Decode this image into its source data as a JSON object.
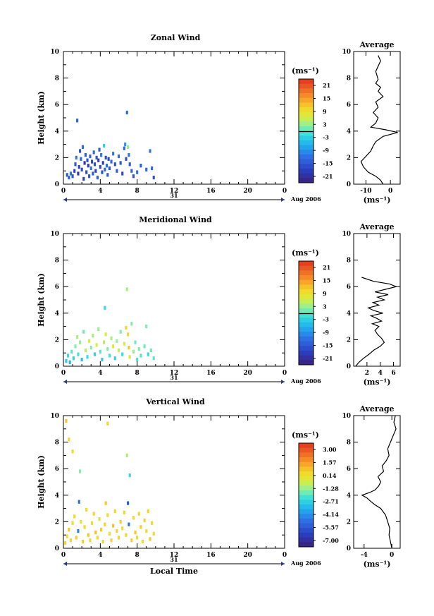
{
  "chart_data": [
    {
      "type": "heatmap",
      "title": "Zonal Wind",
      "ylabel": "Height (km)",
      "xlim": [
        0,
        24
      ],
      "ylim": [
        0,
        10
      ],
      "x_ticks": [
        "0",
        "4",
        "8",
        "12",
        "16",
        "20",
        "0"
      ],
      "y_ticks": [
        "0",
        "2",
        "4",
        "6",
        "8",
        "10"
      ],
      "date_marker": "31",
      "date_label": "Aug 2006",
      "colorbar_unit": "(ms⁻¹)",
      "colorbar_ticks": [
        "21",
        "15",
        "9",
        "3",
        "-3",
        "-9",
        "-15",
        "-21"
      ],
      "colorbar_range": [
        -25,
        25
      ],
      "cells": [
        [
          0.4,
          0.7,
          -15
        ],
        [
          0.6,
          0.5,
          -14
        ],
        [
          0.8,
          0.8,
          -12
        ],
        [
          1.0,
          0.6,
          -16
        ],
        [
          1.2,
          1.0,
          -18
        ],
        [
          1.3,
          1.5,
          -16
        ],
        [
          1.4,
          2.0,
          -12
        ],
        [
          1.5,
          4.8,
          -14
        ],
        [
          1.6,
          0.8,
          -20
        ],
        [
          1.7,
          1.3,
          -18
        ],
        [
          1.8,
          2.5,
          -16
        ],
        [
          1.9,
          1.9,
          -14
        ],
        [
          2.0,
          1.1,
          -17
        ],
        [
          2.1,
          2.8,
          -13
        ],
        [
          2.2,
          0.4,
          -19
        ],
        [
          2.3,
          1.6,
          -21
        ],
        [
          2.4,
          2.2,
          -15
        ],
        [
          2.5,
          0.9,
          -18
        ],
        [
          2.6,
          1.8,
          -17
        ],
        [
          2.7,
          1.4,
          -20
        ],
        [
          2.8,
          0.6,
          -16
        ],
        [
          2.9,
          2.1,
          -14
        ],
        [
          3.0,
          1.2,
          -12
        ],
        [
          3.1,
          1.7,
          -18
        ],
        [
          3.2,
          0.8,
          -15
        ],
        [
          3.3,
          2.4,
          -13
        ],
        [
          3.4,
          1.5,
          -17
        ],
        [
          3.5,
          1.0,
          -19
        ],
        [
          3.6,
          2.0,
          -16
        ],
        [
          3.7,
          0.5,
          -14
        ],
        [
          3.8,
          1.8,
          -20
        ],
        [
          3.9,
          2.6,
          -15
        ],
        [
          4.0,
          1.3,
          -18
        ],
        [
          4.1,
          2.2,
          -12
        ],
        [
          4.2,
          0.9,
          -16
        ],
        [
          4.3,
          1.6,
          -19
        ],
        [
          4.4,
          2.9,
          -3
        ],
        [
          4.5,
          1.1,
          -14
        ],
        [
          4.6,
          2.0,
          -17
        ],
        [
          4.7,
          1.4,
          -13
        ],
        [
          4.8,
          0.7,
          -15
        ],
        [
          4.9,
          1.9,
          -18
        ],
        [
          5.0,
          1.2,
          -16
        ],
        [
          5.2,
          1.7,
          -14
        ],
        [
          5.4,
          2.3,
          -12
        ],
        [
          5.6,
          1.5,
          -17
        ],
        [
          5.8,
          1.0,
          -15
        ],
        [
          6.0,
          2.1,
          -13
        ],
        [
          6.2,
          1.6,
          -16
        ],
        [
          6.4,
          0.8,
          -18
        ],
        [
          6.6,
          2.7,
          -14
        ],
        [
          6.7,
          3.0,
          -9
        ],
        [
          6.8,
          1.9,
          -17
        ],
        [
          6.9,
          5.4,
          -13
        ],
        [
          7.0,
          2.8,
          3
        ],
        [
          7.1,
          2.2,
          -12
        ],
        [
          7.2,
          1.5,
          -15
        ],
        [
          7.4,
          1.0,
          -14
        ],
        [
          7.6,
          0.6,
          -16
        ],
        [
          8.0,
          0.9,
          -13
        ],
        [
          8.4,
          1.4,
          -15
        ],
        [
          9.0,
          1.1,
          -14
        ],
        [
          9.4,
          2.5,
          -12
        ],
        [
          9.6,
          1.2,
          -13
        ],
        [
          9.8,
          0.5,
          -16
        ]
      ],
      "avg_profile": {
        "title": "Average",
        "xlabel": "(ms⁻¹)",
        "x_ticks": [
          "-10",
          "0"
        ],
        "xlim": [
          -15,
          4
        ],
        "points": [
          [
            -3.0,
            0.0
          ],
          [
            -4.0,
            0.3
          ],
          [
            -6.0,
            0.6
          ],
          [
            -9.0,
            0.9
          ],
          [
            -11.0,
            1.3
          ],
          [
            -12.0,
            1.7
          ],
          [
            -10.0,
            2.1
          ],
          [
            -8.0,
            2.5
          ],
          [
            -7.0,
            2.9
          ],
          [
            -6.0,
            3.2
          ],
          [
            -3.0,
            3.6
          ],
          [
            3.0,
            3.9
          ],
          [
            -2.0,
            4.1
          ],
          [
            -8.0,
            4.3
          ],
          [
            -6.0,
            4.6
          ],
          [
            -5.0,
            5.0
          ],
          [
            -7.0,
            5.4
          ],
          [
            -5.0,
            5.8
          ],
          [
            -6.0,
            6.2
          ],
          [
            -3.0,
            6.6
          ],
          [
            -5.0,
            7.0
          ],
          [
            -4.0,
            7.3
          ],
          [
            -6.0,
            7.6
          ],
          [
            -5.0,
            7.9
          ],
          [
            -6.0,
            8.5
          ],
          [
            -4.0,
            9.3
          ],
          [
            -5.0,
            9.7
          ]
        ]
      }
    },
    {
      "type": "heatmap",
      "title": "Meridional Wind",
      "ylabel": "Height (km)",
      "xlim": [
        0,
        24
      ],
      "ylim": [
        0,
        10
      ],
      "x_ticks": [
        "0",
        "4",
        "8",
        "12",
        "16",
        "20",
        "0"
      ],
      "y_ticks": [
        "0",
        "2",
        "4",
        "6",
        "8",
        "10"
      ],
      "date_marker": "31",
      "date_label": "Aug 2006",
      "colorbar_unit": "(ms⁻¹)",
      "colorbar_ticks": [
        "21",
        "15",
        "9",
        "3",
        "-3",
        "-9",
        "-15",
        "-21"
      ],
      "colorbar_range": [
        -25,
        25
      ],
      "cells": [
        [
          0.3,
          0.4,
          -4
        ],
        [
          0.5,
          0.8,
          -2
        ],
        [
          0.7,
          0.3,
          -6
        ],
        [
          0.9,
          1.1,
          0
        ],
        [
          1.1,
          0.6,
          -3
        ],
        [
          1.3,
          1.5,
          2
        ],
        [
          1.5,
          2.2,
          4
        ],
        [
          1.6,
          0.9,
          -1
        ],
        [
          1.8,
          1.8,
          3
        ],
        [
          2.0,
          0.5,
          -5
        ],
        [
          2.2,
          2.6,
          1
        ],
        [
          2.4,
          1.2,
          5
        ],
        [
          2.6,
          0.7,
          -2
        ],
        [
          2.8,
          1.9,
          6
        ],
        [
          3.0,
          1.4,
          2
        ],
        [
          3.2,
          2.3,
          4
        ],
        [
          3.4,
          0.9,
          -3
        ],
        [
          3.6,
          1.6,
          7
        ],
        [
          3.8,
          2.8,
          3
        ],
        [
          4.0,
          1.1,
          0
        ],
        [
          4.2,
          0.5,
          -4
        ],
        [
          4.4,
          1.8,
          5
        ],
        [
          4.5,
          4.4,
          -2
        ],
        [
          4.6,
          2.4,
          6
        ],
        [
          4.8,
          1.3,
          2
        ],
        [
          5.0,
          0.8,
          -1
        ],
        [
          5.2,
          2.1,
          4
        ],
        [
          5.4,
          1.5,
          8
        ],
        [
          5.6,
          0.6,
          -3
        ],
        [
          5.8,
          1.9,
          3
        ],
        [
          6.0,
          1.2,
          5
        ],
        [
          6.2,
          2.6,
          2
        ],
        [
          6.4,
          0.9,
          -2
        ],
        [
          6.6,
          1.7,
          7
        ],
        [
          6.8,
          2.9,
          11
        ],
        [
          6.9,
          5.8,
          4
        ],
        [
          7.0,
          2.4,
          10
        ],
        [
          7.1,
          1.4,
          12
        ],
        [
          7.2,
          0.7,
          6
        ],
        [
          7.4,
          3.2,
          2
        ],
        [
          7.6,
          1.1,
          3
        ],
        [
          7.8,
          1.8,
          1
        ],
        [
          8.0,
          0.5,
          -1
        ],
        [
          8.2,
          1.3,
          2
        ],
        [
          8.4,
          0.8,
          0
        ],
        [
          8.8,
          1.5,
          1
        ],
        [
          9.0,
          3.0,
          2
        ],
        [
          9.2,
          0.9,
          -2
        ],
        [
          9.5,
          1.2,
          1
        ],
        [
          9.8,
          0.6,
          0
        ]
      ],
      "avg_profile": {
        "title": "Average",
        "xlabel": "(ms⁻¹)",
        "x_ticks": [
          "2",
          "4",
          "6"
        ],
        "xlim": [
          0,
          7
        ],
        "points": [
          [
            0.3,
            0.0
          ],
          [
            0.8,
            0.3
          ],
          [
            1.5,
            0.6
          ],
          [
            2.3,
            0.9
          ],
          [
            3.0,
            1.2
          ],
          [
            4.0,
            1.5
          ],
          [
            4.6,
            1.8
          ],
          [
            4.2,
            2.1
          ],
          [
            3.6,
            2.4
          ],
          [
            3.2,
            2.7
          ],
          [
            3.8,
            3.0
          ],
          [
            2.8,
            3.2
          ],
          [
            4.2,
            3.4
          ],
          [
            3.5,
            3.6
          ],
          [
            2.6,
            3.8
          ],
          [
            4.4,
            4.0
          ],
          [
            3.0,
            4.2
          ],
          [
            2.2,
            4.4
          ],
          [
            3.8,
            4.6
          ],
          [
            2.9,
            4.8
          ],
          [
            4.6,
            5.0
          ],
          [
            3.6,
            5.2
          ],
          [
            5.2,
            5.4
          ],
          [
            3.2,
            5.6
          ],
          [
            4.8,
            5.8
          ],
          [
            6.4,
            6.0
          ],
          [
            5.4,
            6.2
          ],
          [
            3.0,
            6.4
          ],
          [
            1.2,
            6.7
          ]
        ]
      }
    },
    {
      "type": "heatmap",
      "title": "Vertical Wind",
      "ylabel": "Height (km)",
      "xlabel": "Local Time",
      "xlim": [
        0,
        24
      ],
      "ylim": [
        0,
        10
      ],
      "x_ticks": [
        "0",
        "4",
        "8",
        "12",
        "16",
        "20",
        "0"
      ],
      "y_ticks": [
        "0",
        "2",
        "4",
        "6",
        "8",
        "10"
      ],
      "date_marker": "31",
      "date_label": "Aug 2006",
      "colorbar_unit": "(ms⁻¹)",
      "colorbar_ticks": [
        "3.00",
        "1.57",
        "0.14",
        "-1.28",
        "-2.71",
        "-4.14",
        "-5.57",
        "-7.00"
      ],
      "colorbar_range": [
        -7.8,
        3.8
      ],
      "cells": [
        [
          0.2,
          0.4,
          0.6
        ],
        [
          0.4,
          0.9,
          0.3
        ],
        [
          0.6,
          1.4,
          0.8
        ],
        [
          0.8,
          0.6,
          0.4
        ],
        [
          1.0,
          1.9,
          0.2
        ],
        [
          1.2,
          2.4,
          0.5
        ],
        [
          1.4,
          0.8,
          0.7
        ],
        [
          1.6,
          1.3,
          -4.5
        ],
        [
          1.7,
          3.5,
          -5.0
        ],
        [
          1.8,
          5.8,
          -1.5
        ],
        [
          1.9,
          2.0,
          0.1
        ],
        [
          2.1,
          0.5,
          0.6
        ],
        [
          2.3,
          1.6,
          0.4
        ],
        [
          2.5,
          2.9,
          0.3
        ],
        [
          2.7,
          1.0,
          0.8
        ],
        [
          2.9,
          0.6,
          0.5
        ],
        [
          3.1,
          1.9,
          0.2
        ],
        [
          3.3,
          2.6,
          0.6
        ],
        [
          3.5,
          1.2,
          0.9
        ],
        [
          3.7,
          0.8,
          0.4
        ],
        [
          3.9,
          2.2,
          0.1
        ],
        [
          4.1,
          1.4,
          0.7
        ],
        [
          4.3,
          0.5,
          0.3
        ],
        [
          4.5,
          1.8,
          0.6
        ],
        [
          4.6,
          3.4,
          0.8
        ],
        [
          4.8,
          2.5,
          0.4
        ],
        [
          5.0,
          1.1,
          0.2
        ],
        [
          5.2,
          0.6,
          0.5
        ],
        [
          5.4,
          1.7,
          0.9
        ],
        [
          5.6,
          2.8,
          0.3
        ],
        [
          5.8,
          1.3,
          0.6
        ],
        [
          6.0,
          0.8,
          0.4
        ],
        [
          6.2,
          2.0,
          0.7
        ],
        [
          6.4,
          1.5,
          0.2
        ],
        [
          6.6,
          2.7,
          0.5
        ],
        [
          6.8,
          1.0,
          0.3
        ],
        [
          6.9,
          7.0,
          -1.0
        ],
        [
          7.0,
          3.4,
          -5.5
        ],
        [
          7.1,
          1.8,
          -4.8
        ],
        [
          7.2,
          5.5,
          -2.5
        ],
        [
          7.4,
          0.6,
          0.6
        ],
        [
          7.6,
          2.3,
          0.4
        ],
        [
          7.8,
          1.2,
          0.8
        ],
        [
          8.0,
          0.8,
          0.3
        ],
        [
          8.2,
          2.6,
          0.5
        ],
        [
          8.4,
          1.6,
          0.7
        ],
        [
          8.6,
          0.5,
          0.4
        ],
        [
          8.8,
          2.1,
          0.6
        ],
        [
          9.0,
          1.3,
          0.2
        ],
        [
          9.2,
          2.8,
          0.5
        ],
        [
          9.4,
          0.7,
          0.8
        ],
        [
          9.6,
          1.9,
          0.4
        ],
        [
          9.8,
          1.1,
          0.3
        ],
        [
          0.3,
          9.6,
          0.9
        ],
        [
          0.6,
          8.2,
          0.5
        ],
        [
          1.0,
          7.3,
          0.4
        ],
        [
          4.8,
          9.4,
          0.6
        ]
      ],
      "avg_profile": {
        "title": "Average",
        "xlabel": "(ms⁻¹)",
        "x_ticks": [
          "-4",
          "0"
        ],
        "xlim": [
          -5.5,
          1.2
        ],
        "points": [
          [
            0.0,
            0.0
          ],
          [
            -0.2,
            0.5
          ],
          [
            -0.4,
            1.0
          ],
          [
            -0.3,
            1.5
          ],
          [
            -0.6,
            2.0
          ],
          [
            -0.9,
            2.5
          ],
          [
            -1.6,
            3.0
          ],
          [
            -2.5,
            3.3
          ],
          [
            -3.2,
            3.6
          ],
          [
            -3.6,
            3.8
          ],
          [
            -4.3,
            4.0
          ],
          [
            -3.2,
            4.2
          ],
          [
            -2.4,
            4.4
          ],
          [
            -1.9,
            4.7
          ],
          [
            -1.6,
            5.0
          ],
          [
            -2.0,
            5.4
          ],
          [
            -1.2,
            5.8
          ],
          [
            -1.4,
            6.2
          ],
          [
            -0.8,
            6.6
          ],
          [
            -0.4,
            7.0
          ],
          [
            -0.6,
            7.5
          ],
          [
            -0.2,
            8.0
          ],
          [
            0.2,
            8.5
          ],
          [
            0.6,
            9.0
          ],
          [
            0.3,
            9.5
          ],
          [
            0.5,
            10.0
          ]
        ]
      }
    }
  ]
}
